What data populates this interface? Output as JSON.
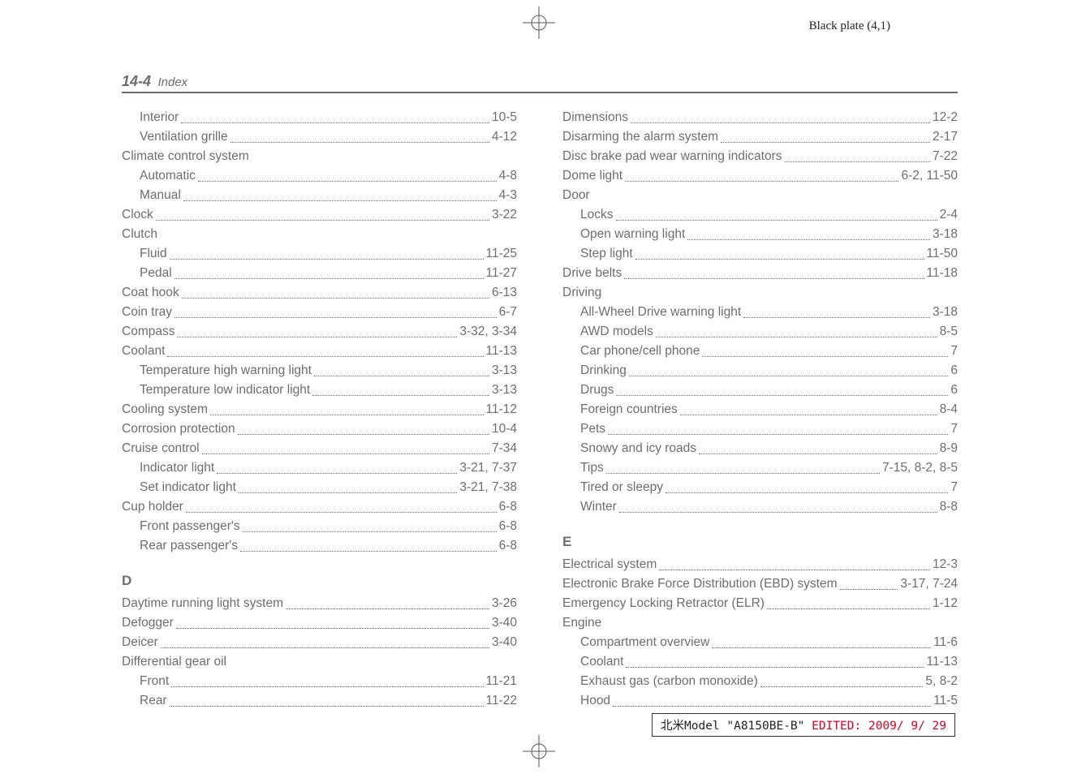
{
  "meta": {
    "plate": "Black plate (4,1)",
    "section": "14-4",
    "sectionLabel": "Index",
    "footerPrefix": "北米Model \"A8150BE-B\" ",
    "footerEdited": "EDITED: 2009/ 9/ 29"
  },
  "left": [
    {
      "label": "Interior",
      "page": "10-5",
      "indent": 1
    },
    {
      "label": "Ventilation grille",
      "page": "4-12",
      "indent": 1
    },
    {
      "label": "Climate control system",
      "group": true
    },
    {
      "label": "Automatic",
      "page": "4-8",
      "indent": 1
    },
    {
      "label": "Manual",
      "page": "4-3",
      "indent": 1
    },
    {
      "label": "Clock",
      "page": "3-22"
    },
    {
      "label": "Clutch",
      "group": true
    },
    {
      "label": "Fluid",
      "page": "11-25",
      "indent": 1
    },
    {
      "label": "Pedal",
      "page": "11-27",
      "indent": 1
    },
    {
      "label": "Coat hook",
      "page": "6-13"
    },
    {
      "label": "Coin tray",
      "page": "6-7"
    },
    {
      "label": "Compass",
      "page": "3-32, 3-34"
    },
    {
      "label": "Coolant",
      "page": "11-13"
    },
    {
      "label": "Temperature high warning light",
      "page": "3-13",
      "indent": 1
    },
    {
      "label": "Temperature low indicator light",
      "page": "3-13",
      "indent": 1
    },
    {
      "label": "Cooling system",
      "page": "11-12"
    },
    {
      "label": "Corrosion protection",
      "page": "10-4"
    },
    {
      "label": "Cruise control",
      "page": "7-34"
    },
    {
      "label": "Indicator light",
      "page": "3-21, 7-37",
      "indent": 1
    },
    {
      "label": "Set indicator light",
      "page": "3-21, 7-38",
      "indent": 1
    },
    {
      "label": "Cup holder",
      "page": "6-8"
    },
    {
      "label": "Front passenger's",
      "page": "6-8",
      "indent": 1
    },
    {
      "label": "Rear passenger's",
      "page": "6-8",
      "indent": 1
    },
    {
      "letter": "D"
    },
    {
      "label": "Daytime running light system",
      "page": "3-26"
    },
    {
      "label": "Defogger",
      "page": "3-40"
    },
    {
      "label": "Deicer",
      "page": "3-40"
    },
    {
      "label": "Differential gear oil",
      "group": true
    },
    {
      "label": "Front",
      "page": "11-21",
      "indent": 1
    },
    {
      "label": "Rear",
      "page": "11-22",
      "indent": 1
    }
  ],
  "right": [
    {
      "label": "Dimensions",
      "page": "12-2"
    },
    {
      "label": "Disarming the alarm system",
      "page": "2-17"
    },
    {
      "label": "Disc brake pad wear warning indicators",
      "page": "7-22"
    },
    {
      "label": "Dome light",
      "page": "6-2, 11-50"
    },
    {
      "label": "Door",
      "group": true
    },
    {
      "label": "Locks",
      "page": "2-4",
      "indent": 1
    },
    {
      "label": "Open warning light",
      "page": "3-18",
      "indent": 1
    },
    {
      "label": "Step light",
      "page": "11-50",
      "indent": 1
    },
    {
      "label": "Drive belts",
      "page": "11-18"
    },
    {
      "label": "Driving",
      "group": true
    },
    {
      "label": "All-Wheel Drive warning light",
      "page": "3-18",
      "indent": 1
    },
    {
      "label": "AWD models",
      "page": "8-5",
      "indent": 1
    },
    {
      "label": "Car phone/cell phone",
      "page": "7",
      "indent": 1
    },
    {
      "label": "Drinking",
      "page": "6",
      "indent": 1
    },
    {
      "label": "Drugs",
      "page": "6",
      "indent": 1
    },
    {
      "label": "Foreign countries",
      "page": "8-4",
      "indent": 1
    },
    {
      "label": "Pets",
      "page": "7",
      "indent": 1
    },
    {
      "label": "Snowy and icy roads",
      "page": "8-9",
      "indent": 1
    },
    {
      "label": "Tips",
      "page": "7-15, 8-2, 8-5",
      "indent": 1
    },
    {
      "label": "Tired or sleepy",
      "page": "7",
      "indent": 1
    },
    {
      "label": "Winter",
      "page": "8-8",
      "indent": 1
    },
    {
      "letter": "E"
    },
    {
      "label": "Electrical system",
      "page": "12-3"
    },
    {
      "label": "Electronic Brake Force Distribution (EBD) system",
      "page": "3-17, 7-24",
      "tight": true
    },
    {
      "label": "Emergency Locking Retractor (ELR)",
      "page": "1-12"
    },
    {
      "label": "Engine",
      "group": true
    },
    {
      "label": "Compartment overview",
      "page": "11-6",
      "indent": 1
    },
    {
      "label": "Coolant",
      "page": "11-13",
      "indent": 1
    },
    {
      "label": "Exhaust gas (carbon monoxide)",
      "page": "5, 8-2",
      "indent": 1
    },
    {
      "label": "Hood",
      "page": "11-5",
      "indent": 1
    }
  ]
}
